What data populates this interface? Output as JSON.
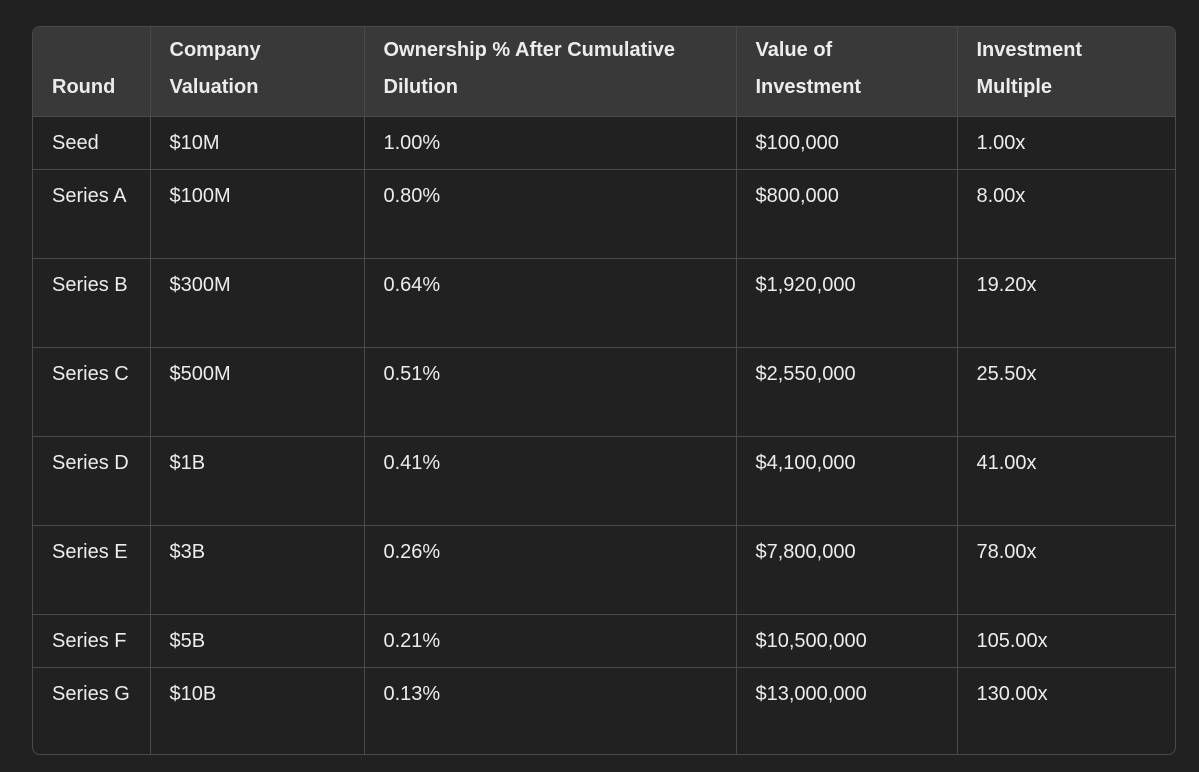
{
  "table": {
    "headers": [
      "Round",
      "Company Valuation",
      "Ownership % After Cumulative Dilution",
      "Value of Investment",
      "Investment Multiple"
    ],
    "rows": [
      [
        "Seed",
        "$10M",
        "1.00%",
        "$100,000",
        "1.00x"
      ],
      [
        "Series A",
        "$100M",
        "0.80%",
        "$800,000",
        "8.00x"
      ],
      [
        "Series B",
        "$300M",
        "0.64%",
        "$1,920,000",
        "19.20x"
      ],
      [
        "Series C",
        "$500M",
        "0.51%",
        "$2,550,000",
        "25.50x"
      ],
      [
        "Series D",
        "$1B",
        "0.41%",
        "$4,100,000",
        "41.00x"
      ],
      [
        "Series E",
        "$3B",
        "0.26%",
        "$7,800,000",
        "78.00x"
      ],
      [
        "Series F",
        "$5B",
        "0.21%",
        "$10,500,000",
        "105.00x"
      ],
      [
        "Series G",
        "$10B",
        "0.13%",
        "$13,000,000",
        "130.00x"
      ]
    ]
  }
}
